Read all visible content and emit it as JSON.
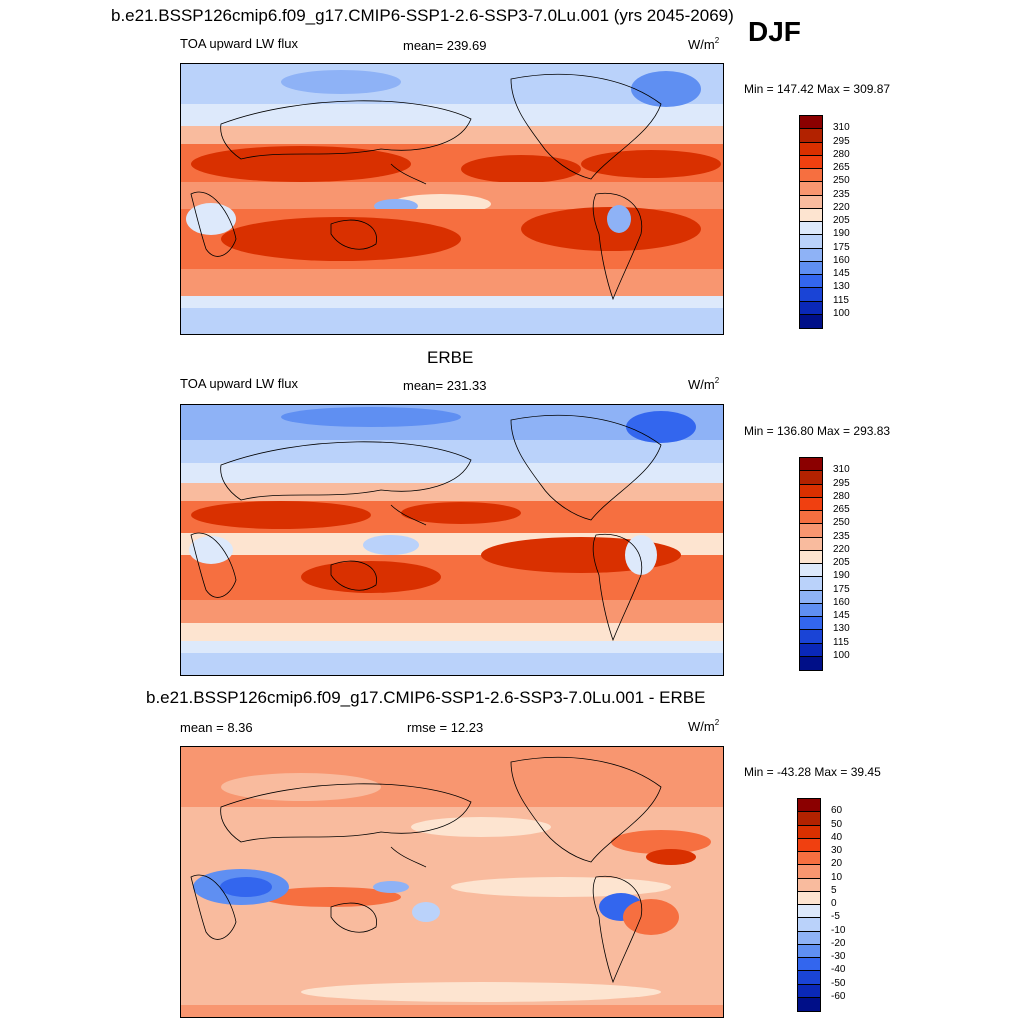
{
  "header": {
    "title": "b.e21.BSSP126cmip6.f09_g17.CMIP6-SSP1-2.6-SSP3-7.0Lu.001 (yrs 2045-2069)",
    "season": "DJF"
  },
  "panels": [
    {
      "left_label": "TOA upward LW flux",
      "center_label": "mean= 239.69",
      "units": "W/m",
      "units_sup": "2",
      "minmax": "Min = 147.42 Max = 309.87"
    },
    {
      "subtitle": "ERBE",
      "left_label": "TOA upward LW flux",
      "center_label": "mean= 231.33",
      "units": "W/m",
      "units_sup": "2",
      "minmax": "Min = 136.80 Max = 293.83"
    },
    {
      "subtitle": "b.e21.BSSP126cmip6.f09_g17.CMIP6-SSP1-2.6-SSP3-7.0Lu.001 - ERBE",
      "left_label": "mean =   8.36",
      "center_label": "rmse =  12.23",
      "units": "W/m",
      "units_sup": "2",
      "minmax": "Min = -43.28 Max =  39.45"
    }
  ],
  "colorbar_abs": {
    "labels": [
      "310",
      "295",
      "280",
      "265",
      "250",
      "235",
      "220",
      "205",
      "190",
      "175",
      "160",
      "145",
      "130",
      "115",
      "100"
    ],
    "colors": [
      "#8b0000",
      "#b22200",
      "#d93000",
      "#f04010",
      "#f66f40",
      "#f89670",
      "#f9bb9e",
      "#fde4d0",
      "#dde9fb",
      "#bad2fa",
      "#8eb2f6",
      "#5f8ff2",
      "#3366ee",
      "#1a44d6",
      "#0a28b8",
      "#000f88"
    ]
  },
  "colorbar_diff": {
    "labels": [
      "60",
      "50",
      "40",
      "30",
      "20",
      "10",
      "5",
      "0",
      "-5",
      "-10",
      "-20",
      "-30",
      "-40",
      "-50",
      "-60"
    ],
    "colors": [
      "#8b0000",
      "#b22200",
      "#d93000",
      "#f04010",
      "#f66f40",
      "#f89670",
      "#f9bb9e",
      "#fde4d0",
      "#dde9fb",
      "#bad2fa",
      "#8eb2f6",
      "#5f8ff2",
      "#3366ee",
      "#1a44d6",
      "#0a28b8",
      "#000f88"
    ]
  }
}
